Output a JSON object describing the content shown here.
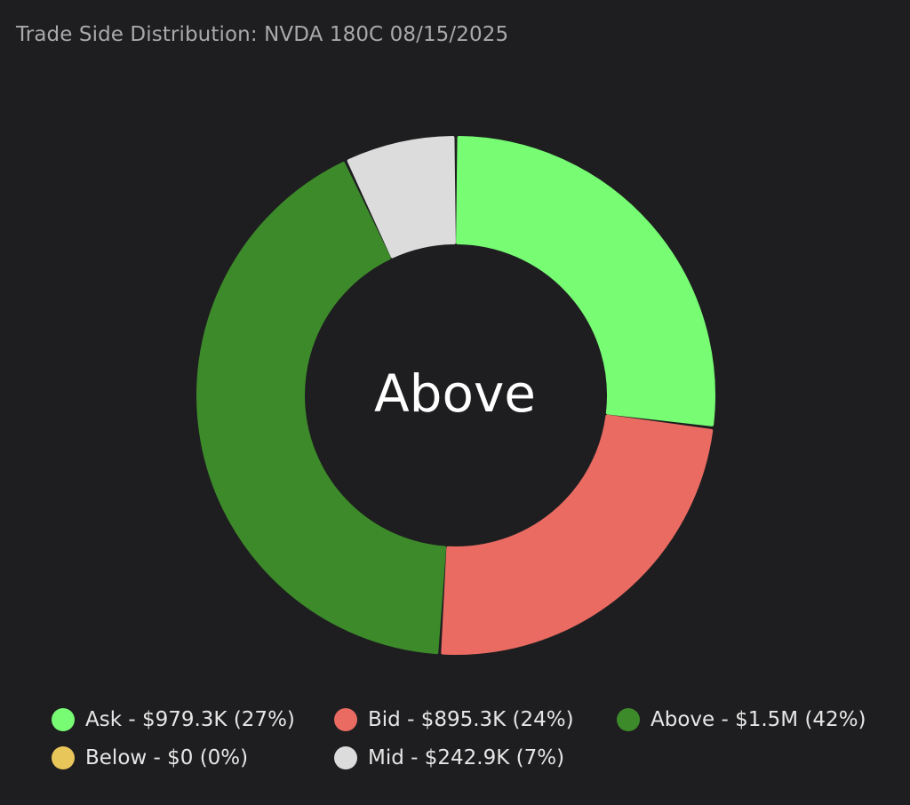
{
  "title": "Trade Side Distribution: NVDA 180C 08/15/2025",
  "center_label": "Above",
  "chart_data": {
    "type": "pie",
    "variant": "donut",
    "title": "Trade Side Distribution: NVDA 180C 08/15/2025",
    "center_label": "Above",
    "legend_placement": "bottom",
    "slices": [
      {
        "name": "Ask",
        "value_label": "$979.3K",
        "percent_label": "(27%)",
        "percent": 27,
        "color": "#77fc73"
      },
      {
        "name": "Bid",
        "value_label": "$895.3K",
        "percent_label": "(24%)",
        "percent": 24,
        "color": "#ea6b62"
      },
      {
        "name": "Above",
        "value_label": "$1.5M",
        "percent_label": "(42%)",
        "percent": 42,
        "color": "#3d8a2a"
      },
      {
        "name": "Below",
        "value_label": "$0",
        "percent_label": "(0%)",
        "percent": 0,
        "color": "#e9c65a"
      },
      {
        "name": "Mid",
        "value_label": "$242.9K",
        "percent_label": "(7%)",
        "percent": 7,
        "color": "#dcdcdc"
      }
    ],
    "draw_order": [
      "Ask",
      "Bid",
      "Above",
      "Below",
      "Mid"
    ],
    "legend": [
      {
        "text": "Ask - $979.3K (27%)",
        "color": "#77fc73"
      },
      {
        "text": "Bid - $895.3K (24%)",
        "color": "#ea6b62"
      },
      {
        "text": "Above - $1.5M (42%)",
        "color": "#3d8a2a"
      },
      {
        "text": "Below - $0 (0%)",
        "color": "#e9c65a"
      },
      {
        "text": "Mid - $242.9K (7%)",
        "color": "#dcdcdc"
      }
    ]
  }
}
